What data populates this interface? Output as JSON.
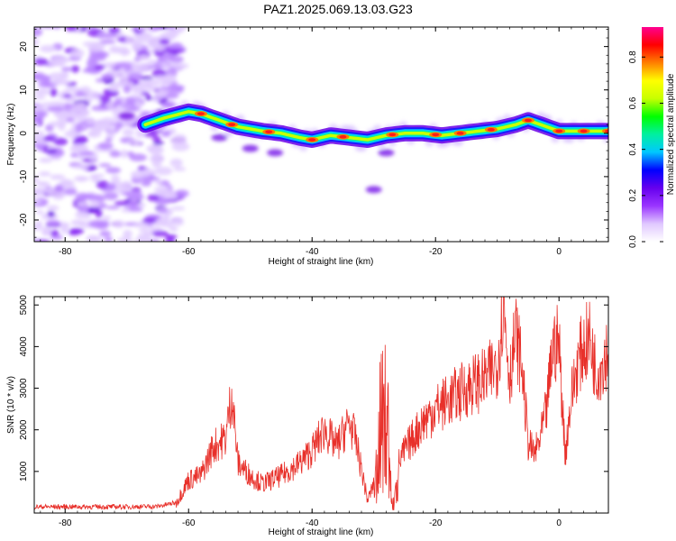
{
  "title": "PAZ1.2025.069.13.03.G23",
  "chart_data": [
    {
      "type": "heatmap",
      "xlabel": "Height of straight line (km)",
      "ylabel": "Frequency (Hz)",
      "xlim": [
        -85,
        8
      ],
      "ylim": [
        -25,
        24.5
      ],
      "xticks": [
        -80,
        -60,
        -40,
        -20,
        0
      ],
      "yticks": [
        -20,
        -10,
        0,
        10,
        20
      ],
      "colorbar": {
        "label": "Normalized spectral amplitude",
        "range": [
          0,
          0.93
        ],
        "ticks": [
          0.0,
          0.2,
          0.4,
          0.6,
          0.8
        ],
        "colors": [
          "#ffffff",
          "#e0c8ff",
          "#9a35ff",
          "#6600ee",
          "#0000ff",
          "#00c8ff",
          "#00f0a0",
          "#00ff00",
          "#c8ff00",
          "#ffff00",
          "#ff8000",
          "#ff0000",
          "#ff0090"
        ]
      },
      "ridge": {
        "x": [
          -67,
          -64,
          -60,
          -58,
          -55,
          -52,
          -48,
          -45,
          -42,
          -40,
          -37,
          -34,
          -31,
          -28,
          -25,
          -22,
          -19,
          -16,
          -13,
          -10,
          -7,
          -5,
          -3,
          0,
          3,
          6,
          8
        ],
        "frequency": [
          2,
          3.5,
          5,
          4.5,
          3,
          1.5,
          0.5,
          0,
          -1,
          -1.5,
          -0.5,
          -1,
          -1.5,
          -0.5,
          0,
          0,
          -0.5,
          0,
          0.5,
          1,
          2,
          3,
          2,
          0.5,
          0.5,
          0.5,
          0.5
        ]
      }
    },
    {
      "type": "line",
      "xlabel": "Height of straight line (km)",
      "ylabel": "SNR (10 * v/v)",
      "xlim": [
        -85,
        8
      ],
      "ylim": [
        0,
        5200
      ],
      "xticks": [
        -80,
        -60,
        -40,
        -20,
        0
      ],
      "yticks": [
        1000,
        2000,
        3000,
        4000,
        5000
      ],
      "line_color": "#e8302a",
      "envelope": {
        "x": [
          -85,
          -80,
          -70,
          -65,
          -62,
          -60,
          -58,
          -56,
          -54,
          -53,
          -52,
          -50,
          -48,
          -45,
          -42,
          -40,
          -38,
          -36,
          -34,
          -33,
          -31,
          -30,
          -29,
          -28,
          -27,
          -26,
          -25,
          -22,
          -20,
          -18,
          -16,
          -14,
          -12,
          -10,
          -9,
          -8,
          -7,
          -6,
          -5,
          -4,
          -3,
          -2,
          -1,
          0,
          1,
          2,
          3,
          4,
          5,
          6,
          7,
          8
        ],
        "y": [
          150,
          150,
          150,
          160,
          250,
          800,
          900,
          1600,
          1800,
          2900,
          1200,
          900,
          700,
          900,
          1200,
          1500,
          2000,
          1600,
          2200,
          1800,
          300,
          700,
          3500,
          4500,
          200,
          1200,
          1500,
          2200,
          2500,
          2700,
          2900,
          3100,
          3200,
          3600,
          5000,
          3300,
          4300,
          3500,
          1700,
          1400,
          1800,
          2500,
          4000,
          4100,
          1400,
          2800,
          3600,
          4000,
          4200,
          3400,
          3600,
          4000
        ]
      }
    }
  ]
}
